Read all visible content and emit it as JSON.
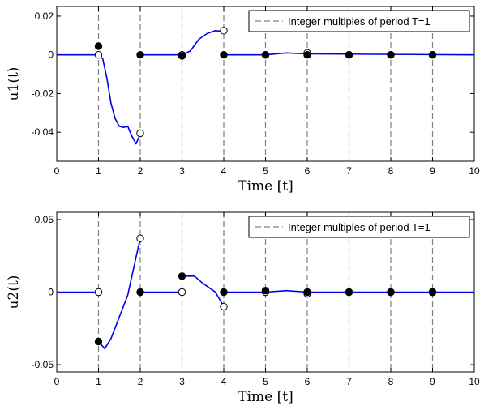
{
  "chart_data": [
    {
      "type": "line",
      "xlabel": "Time [t]",
      "ylabel": "u1(t)",
      "xlim": [
        0,
        10
      ],
      "ylim": [
        -0.055,
        0.025
      ],
      "xticks": [
        "0",
        "1",
        "2",
        "3",
        "4",
        "5",
        "6",
        "7",
        "8",
        "9",
        "10"
      ],
      "yticks": [
        {
          "v": 0.02,
          "label": "0.02"
        },
        {
          "v": 0,
          "label": "0"
        },
        {
          "v": -0.02,
          "label": "-0.02"
        },
        {
          "v": -0.04,
          "label": "-0.04"
        }
      ],
      "legend": {
        "label": "Integer multiples of period T=1",
        "position": "top-right"
      },
      "vlines": [
        1,
        2,
        3,
        4,
        5,
        6,
        7,
        8,
        9
      ],
      "series": [
        {
          "color": "#0000e6",
          "points": [
            [
              0,
              0
            ],
            [
              1,
              0
            ],
            [
              1.1,
              -0.002
            ],
            [
              1.2,
              -0.012
            ],
            [
              1.3,
              -0.025
            ],
            [
              1.4,
              -0.033
            ],
            [
              1.5,
              -0.037
            ],
            [
              1.6,
              -0.0375
            ],
            [
              1.7,
              -0.037
            ],
            [
              1.8,
              -0.042
            ],
            [
              1.9,
              -0.046
            ],
            [
              2,
              -0.041
            ]
          ]
        },
        {
          "color": "#0000e6",
          "points": [
            [
              2,
              0
            ],
            [
              3,
              0
            ],
            [
              3.2,
              0.002
            ],
            [
              3.4,
              0.008
            ],
            [
              3.6,
              0.011
            ],
            [
              3.8,
              0.0125
            ],
            [
              4,
              0.012
            ]
          ]
        },
        {
          "color": "#0000e6",
          "points": [
            [
              4,
              0
            ],
            [
              5,
              0
            ],
            [
              5.5,
              0.001
            ],
            [
              6,
              0.0005
            ],
            [
              10,
              0
            ]
          ]
        }
      ],
      "filled_points": [
        [
          1,
          0.0045
        ],
        [
          2,
          0
        ],
        [
          3,
          -0.0005
        ],
        [
          4,
          0
        ],
        [
          5,
          0
        ],
        [
          6,
          0
        ],
        [
          7,
          0
        ],
        [
          8,
          0
        ],
        [
          9,
          0
        ]
      ],
      "open_points": [
        [
          1,
          0
        ],
        [
          2,
          -0.0405
        ],
        [
          3,
          0
        ],
        [
          4,
          0.0125
        ],
        [
          5,
          0
        ],
        [
          6,
          0.001
        ],
        [
          7,
          0
        ],
        [
          8,
          0
        ],
        [
          9,
          0
        ]
      ]
    },
    {
      "type": "line",
      "xlabel": "Time [t]",
      "ylabel": "u2(t)",
      "xlim": [
        0,
        10
      ],
      "ylim": [
        -0.055,
        0.055
      ],
      "xticks": [
        "0",
        "1",
        "2",
        "3",
        "4",
        "5",
        "6",
        "7",
        "8",
        "9",
        "10"
      ],
      "yticks": [
        {
          "v": 0.05,
          "label": "0.05"
        },
        {
          "v": 0,
          "label": "0"
        },
        {
          "v": -0.05,
          "label": "-0.05"
        }
      ],
      "legend": {
        "label": "Integer multiples of period T=1",
        "position": "top-right"
      },
      "vlines": [
        1,
        2,
        3,
        4,
        5,
        6,
        7,
        8,
        9
      ],
      "series": [
        {
          "color": "#0000e6",
          "points": [
            [
              0,
              0
            ],
            [
              1,
              0
            ]
          ]
        },
        {
          "color": "#0000e6",
          "points": [
            [
              1,
              -0.034
            ],
            [
              1.15,
              -0.039
            ],
            [
              1.3,
              -0.032
            ],
            [
              1.5,
              -0.017
            ],
            [
              1.7,
              -0.002
            ],
            [
              1.9,
              0.024
            ],
            [
              2,
              0.037
            ]
          ]
        },
        {
          "color": "#0000e6",
          "points": [
            [
              2,
              0
            ],
            [
              3,
              0
            ]
          ]
        },
        {
          "color": "#0000e6",
          "points": [
            [
              3,
              0.011
            ],
            [
              3.3,
              0.011
            ],
            [
              3.5,
              0.006
            ],
            [
              3.8,
              0
            ],
            [
              4,
              -0.01
            ]
          ]
        },
        {
          "color": "#0000e6",
          "points": [
            [
              4,
              0
            ],
            [
              5,
              0
            ],
            [
              5.5,
              0.001
            ],
            [
              6,
              0
            ],
            [
              10,
              0
            ]
          ]
        }
      ],
      "filled_points": [
        [
          1,
          -0.034
        ],
        [
          2,
          0
        ],
        [
          3,
          0.011
        ],
        [
          4,
          0
        ],
        [
          5,
          0.001
        ],
        [
          6,
          0
        ],
        [
          7,
          0
        ],
        [
          8,
          0
        ],
        [
          9,
          0
        ]
      ],
      "open_points": [
        [
          1,
          0
        ],
        [
          2,
          0.037
        ],
        [
          3,
          0
        ],
        [
          4,
          -0.01
        ],
        [
          5,
          0
        ],
        [
          6,
          -0.001
        ],
        [
          7,
          0
        ],
        [
          8,
          0
        ],
        [
          9,
          0
        ]
      ]
    }
  ]
}
